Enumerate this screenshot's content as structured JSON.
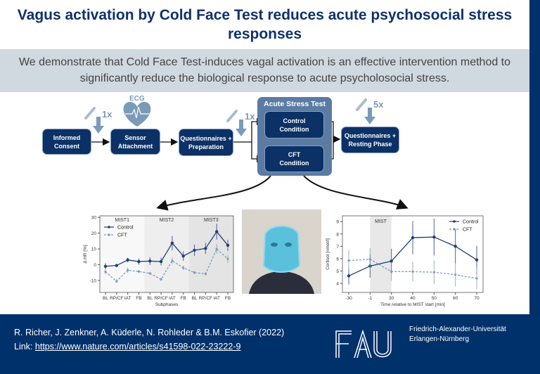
{
  "title": "Vagus activation by Cold Face Test reduces acute psychosocial stress responses",
  "summary": "We demonstrate that Cold Face Test-induces vagal activation is an effective intervention method to significantly reduce the biological response to acute psycholosocial stress.",
  "flow": {
    "informed_consent": "Informed Consent",
    "sensor_attachment": "Sensor Attachment",
    "ecg_label": "ECG",
    "questionnaires_preparation": "Questionnaires + Preparation",
    "acute_stress_test": "Acute Stress Test",
    "control_condition": "Control Condition",
    "cft_condition": "CFT Condition",
    "questionnaires_resting": "Questionnaires + Resting Phase",
    "sample_counts": [
      "1x",
      "1x",
      "5x"
    ]
  },
  "colors": {
    "navy": "#0b3166",
    "control": "#1f3f7a",
    "cft": "#7f9bbf",
    "accent_light": "#7a9bb8"
  },
  "chart_data": [
    {
      "type": "line",
      "ylabel": "Δ HR [%]",
      "xlabel": "Subphases",
      "categories": [
        "BL",
        "RP/CF",
        "IAT",
        "FB",
        "BL",
        "RP/CF",
        "IAT",
        "FB",
        "BL",
        "RP/CF",
        "IAT",
        "FB"
      ],
      "phases": [
        "MIST1",
        "MIST2",
        "MIST3"
      ],
      "ylim": [
        -17.6,
        31
      ],
      "yticks": [
        -10,
        0,
        10,
        20,
        30
      ],
      "legend": "top-left",
      "series": [
        {
          "name": "Control",
          "style": "solid",
          "values": [
            -1,
            -0.5,
            3,
            2,
            2.3,
            2,
            13.7,
            5.5,
            9.2,
            10.3,
            21,
            12.3
          ],
          "errors": [
            2,
            1,
            1.5,
            2,
            2.5,
            2.5,
            4.5,
            3,
            3.5,
            3.5,
            5,
            3.5
          ]
        },
        {
          "name": "CFT",
          "style": "dashed",
          "values": [
            -4.5,
            -10.5,
            -3.5,
            -4.3,
            -5.5,
            -9.3,
            2.5,
            -2,
            -5,
            -5.8,
            10,
            3.7
          ],
          "errors": [
            1.5,
            1.3,
            1.8,
            1,
            1,
            1,
            2,
            1.5,
            1,
            1,
            3,
            2.5
          ]
        }
      ]
    },
    {
      "type": "line",
      "ylabel": "Cortisol [nmol/l]",
      "xlabel": "Time relative to MIST start [min]",
      "categories": [
        "-30",
        "-1",
        "30",
        "40",
        "50",
        "60",
        "70"
      ],
      "shaded": {
        "label": "MIST",
        "from": "-1",
        "to": "30"
      },
      "ylim": [
        3.26,
        9.47
      ],
      "yticks": [
        4,
        5,
        6,
        7,
        8,
        9
      ],
      "legend": "top-right",
      "series": [
        {
          "name": "Control",
          "style": "solid",
          "values": [
            4.6,
            5.4,
            5.8,
            7.7,
            7.75,
            7.0,
            5.9
          ],
          "errors": [
            0.7,
            0.95,
            1.0,
            1.35,
            1.5,
            1.4,
            1.15
          ]
        },
        {
          "name": "CFT",
          "style": "dashed",
          "values": [
            5.85,
            5.95,
            4.95,
            4.95,
            4.9,
            4.7,
            4.4
          ],
          "errors": [
            0.85,
            0.9,
            0.75,
            0.8,
            0.95,
            0.95,
            0.9
          ]
        }
      ]
    }
  ],
  "footer": {
    "authors": "R. Richer, J. Zenkner, A. Küderle, N. Rohleder & B.M. Eskofier (2022)",
    "link_label": "Link: ",
    "link": "https://www.nature.com/articles/s41598-022-23222-9",
    "logo": "FAU",
    "university_line1": "Friedrich-Alexander-Universität",
    "university_line2": "Erlangen-Nürnberg"
  }
}
